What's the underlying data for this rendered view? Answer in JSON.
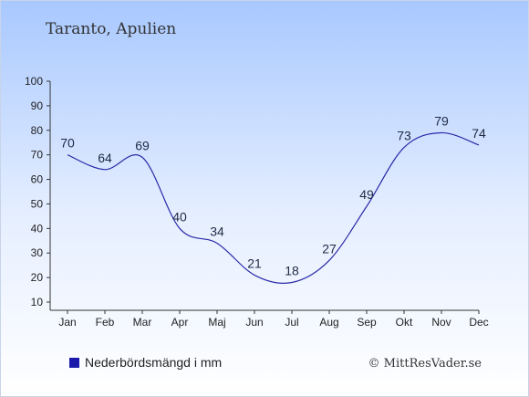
{
  "chart_data": {
    "type": "line",
    "title": "Taranto, Apulien",
    "categories": [
      "Jan",
      "Feb",
      "Mar",
      "Apr",
      "Maj",
      "Jun",
      "Jul",
      "Aug",
      "Sep",
      "Okt",
      "Nov",
      "Dec"
    ],
    "series": [
      {
        "name": "Nederbördsmängd i mm",
        "values": [
          70,
          64,
          69,
          40,
          34,
          21,
          18,
          27,
          49,
          73,
          79,
          74
        ]
      }
    ],
    "ylim": [
      10,
      100
    ],
    "yticks": [
      10,
      20,
      30,
      40,
      50,
      60,
      70,
      80,
      90,
      100
    ],
    "grid": false,
    "legend": "bottom-left",
    "credit": "© MittResVader.se",
    "colors": {
      "line": "#2a2aa8",
      "legend_marker": "#1a1aaa",
      "label": "#1f2a44",
      "axis": "#333333",
      "background_top": "#a8c8ff",
      "background_bottom": "#ffffff"
    }
  }
}
